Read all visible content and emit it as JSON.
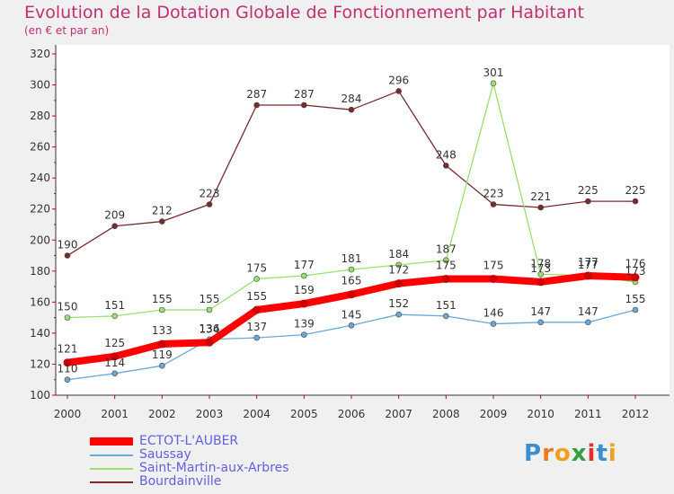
{
  "header": {
    "title": "Evolution de la Dotation Globale de Fonctionnement par Habitant",
    "subtitle": "(en € et par an)"
  },
  "logo": {
    "text": "Proxiti",
    "letters": [
      "P",
      "r",
      "o",
      "x",
      "i",
      "t",
      "i"
    ]
  },
  "colors": {
    "title": "#c03070",
    "axis": "#333333",
    "tick": "#cc0000",
    "legend_text": "#6060e0",
    "ectot": "#ff0000",
    "saussay": "#6aa8d6",
    "saint_martin": "#99e06e",
    "bourdainville": "#7a2a2a"
  },
  "chart_data": {
    "type": "line",
    "title": "Evolution de la Dotation Globale de Fonctionnement par Habitant",
    "subtitle": "(en € et par an)",
    "xlabel": "",
    "ylabel": "",
    "ylim": [
      100,
      320
    ],
    "yticks": [
      100,
      120,
      140,
      160,
      180,
      200,
      220,
      240,
      260,
      280,
      300,
      320
    ],
    "categories": [
      "2000",
      "2001",
      "2002",
      "2003",
      "2004",
      "2005",
      "2006",
      "2007",
      "2008",
      "2009",
      "2010",
      "2011",
      "2012"
    ],
    "grid": false,
    "legend_position": "bottom-left",
    "series": [
      {
        "key": "ectot",
        "name": "ECTOT-L'AUBER",
        "color": "#ff0000",
        "values": [
          121,
          125,
          133,
          134,
          155,
          159,
          165,
          172,
          175,
          175,
          173,
          177,
          176
        ]
      },
      {
        "key": "saussay",
        "name": "Saussay",
        "color": "#6aa8d6",
        "values": [
          110,
          114,
          119,
          136,
          137,
          139,
          145,
          152,
          151,
          146,
          147,
          147,
          155
        ]
      },
      {
        "key": "saint_martin",
        "name": "Saint-Martin-aux-Arbres",
        "color": "#99e06e",
        "values": [
          150,
          151,
          155,
          155,
          175,
          177,
          181,
          184,
          187,
          301,
          178,
          177,
          173
        ]
      },
      {
        "key": "bourdainville",
        "name": "Bourdainville",
        "color": "#7a2a2a",
        "values": [
          190,
          209,
          212,
          223,
          287,
          287,
          284,
          296,
          248,
          223,
          221,
          225,
          225
        ]
      }
    ]
  }
}
